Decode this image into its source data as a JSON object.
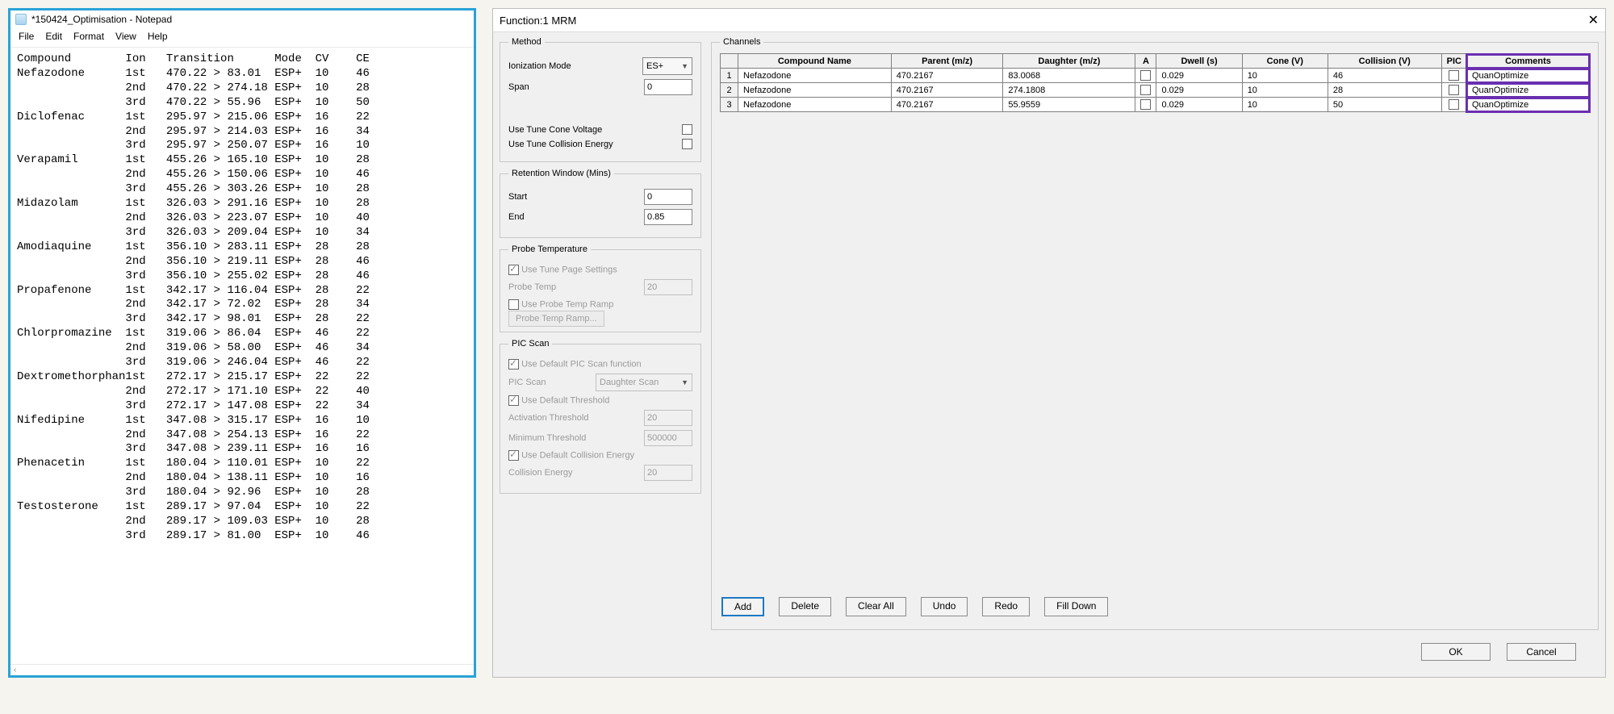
{
  "notepad": {
    "title": "*150424_Optimisation - Notepad",
    "menu": [
      "File",
      "Edit",
      "Format",
      "View",
      "Help"
    ],
    "header": [
      "Compound",
      "Ion",
      "Transition",
      "Mode",
      "CV",
      "CE"
    ],
    "compounds": [
      {
        "name": "Nefazodone",
        "rows": [
          {
            "ion": "1st",
            "trans": "470.22 > 83.01",
            "mode": "ESP+",
            "cv": "10",
            "ce": "46"
          },
          {
            "ion": "2nd",
            "trans": "470.22 > 274.18",
            "mode": "ESP+",
            "cv": "10",
            "ce": "28"
          },
          {
            "ion": "3rd",
            "trans": "470.22 > 55.96",
            "mode": "ESP+",
            "cv": "10",
            "ce": "50"
          }
        ]
      },
      {
        "name": "Diclofenac",
        "rows": [
          {
            "ion": "1st",
            "trans": "295.97 > 215.06",
            "mode": "ESP+",
            "cv": "16",
            "ce": "22"
          },
          {
            "ion": "2nd",
            "trans": "295.97 > 214.03",
            "mode": "ESP+",
            "cv": "16",
            "ce": "34"
          },
          {
            "ion": "3rd",
            "trans": "295.97 > 250.07",
            "mode": "ESP+",
            "cv": "16",
            "ce": "10"
          }
        ]
      },
      {
        "name": "Verapamil",
        "rows": [
          {
            "ion": "1st",
            "trans": "455.26 > 165.10",
            "mode": "ESP+",
            "cv": "10",
            "ce": "28"
          },
          {
            "ion": "2nd",
            "trans": "455.26 > 150.06",
            "mode": "ESP+",
            "cv": "10",
            "ce": "46"
          },
          {
            "ion": "3rd",
            "trans": "455.26 > 303.26",
            "mode": "ESP+",
            "cv": "10",
            "ce": "28"
          }
        ]
      },
      {
        "name": "Midazolam",
        "rows": [
          {
            "ion": "1st",
            "trans": "326.03 > 291.16",
            "mode": "ESP+",
            "cv": "10",
            "ce": "28"
          },
          {
            "ion": "2nd",
            "trans": "326.03 > 223.07",
            "mode": "ESP+",
            "cv": "10",
            "ce": "40"
          },
          {
            "ion": "3rd",
            "trans": "326.03 > 209.04",
            "mode": "ESP+",
            "cv": "10",
            "ce": "34"
          }
        ]
      },
      {
        "name": "Amodiaquine",
        "rows": [
          {
            "ion": "1st",
            "trans": "356.10 > 283.11",
            "mode": "ESP+",
            "cv": "28",
            "ce": "28"
          },
          {
            "ion": "2nd",
            "trans": "356.10 > 219.11",
            "mode": "ESP+",
            "cv": "28",
            "ce": "46"
          },
          {
            "ion": "3rd",
            "trans": "356.10 > 255.02",
            "mode": "ESP+",
            "cv": "28",
            "ce": "46"
          }
        ]
      },
      {
        "name": "Propafenone",
        "rows": [
          {
            "ion": "1st",
            "trans": "342.17 > 116.04",
            "mode": "ESP+",
            "cv": "28",
            "ce": "22"
          },
          {
            "ion": "2nd",
            "trans": "342.17 > 72.02",
            "mode": "ESP+",
            "cv": "28",
            "ce": "34"
          },
          {
            "ion": "3rd",
            "trans": "342.17 > 98.01",
            "mode": "ESP+",
            "cv": "28",
            "ce": "22"
          }
        ]
      },
      {
        "name": "Chlorpromazine",
        "rows": [
          {
            "ion": "1st",
            "trans": "319.06 > 86.04",
            "mode": "ESP+",
            "cv": "46",
            "ce": "22"
          },
          {
            "ion": "2nd",
            "trans": "319.06 > 58.00",
            "mode": "ESP+",
            "cv": "46",
            "ce": "34"
          },
          {
            "ion": "3rd",
            "trans": "319.06 > 246.04",
            "mode": "ESP+",
            "cv": "46",
            "ce": "22"
          }
        ]
      },
      {
        "name": "Dextromethorphan",
        "rows": [
          {
            "ion": "1st",
            "trans": "272.17 > 215.17",
            "mode": "ESP+",
            "cv": "22",
            "ce": "22"
          },
          {
            "ion": "2nd",
            "trans": "272.17 > 171.10",
            "mode": "ESP+",
            "cv": "22",
            "ce": "40"
          },
          {
            "ion": "3rd",
            "trans": "272.17 > 147.08",
            "mode": "ESP+",
            "cv": "22",
            "ce": "34"
          }
        ]
      },
      {
        "name": "Nifedipine",
        "rows": [
          {
            "ion": "1st",
            "trans": "347.08 > 315.17",
            "mode": "ESP+",
            "cv": "16",
            "ce": "10"
          },
          {
            "ion": "2nd",
            "trans": "347.08 > 254.13",
            "mode": "ESP+",
            "cv": "16",
            "ce": "22"
          },
          {
            "ion": "3rd",
            "trans": "347.08 > 239.11",
            "mode": "ESP+",
            "cv": "16",
            "ce": "16"
          }
        ]
      },
      {
        "name": "Phenacetin",
        "rows": [
          {
            "ion": "1st",
            "trans": "180.04 > 110.01",
            "mode": "ESP+",
            "cv": "10",
            "ce": "22"
          },
          {
            "ion": "2nd",
            "trans": "180.04 > 138.11",
            "mode": "ESP+",
            "cv": "10",
            "ce": "16"
          },
          {
            "ion": "3rd",
            "trans": "180.04 > 92.96",
            "mode": "ESP+",
            "cv": "10",
            "ce": "28"
          }
        ]
      },
      {
        "name": "Testosterone",
        "rows": [
          {
            "ion": "1st",
            "trans": "289.17 > 97.04",
            "mode": "ESP+",
            "cv": "10",
            "ce": "22"
          },
          {
            "ion": "2nd",
            "trans": "289.17 > 109.03",
            "mode": "ESP+",
            "cv": "10",
            "ce": "28"
          },
          {
            "ion": "3rd",
            "trans": "289.17 > 81.00",
            "mode": "ESP+",
            "cv": "10",
            "ce": "46"
          }
        ]
      }
    ],
    "col_widths": {
      "name": 16,
      "ion": 6,
      "trans": 16,
      "mode": 6,
      "cv": 6,
      "ce": 4
    }
  },
  "mrm": {
    "title": "Function:1 MRM",
    "method": {
      "legend": "Method",
      "ion_label": "Ionization Mode",
      "ion_value": "ES+",
      "span_label": "Span",
      "span_value": "0",
      "tune_cone": "Use Tune Cone Voltage",
      "tune_coll": "Use Tune Collision Energy"
    },
    "retention": {
      "legend": "Retention Window (Mins)",
      "start_label": "Start",
      "start_value": "0",
      "end_label": "End",
      "end_value": "0.85"
    },
    "probe": {
      "legend": "Probe Temperature",
      "use_tune": "Use Tune Page Settings",
      "temp_label": "Probe Temp",
      "temp_value": "20",
      "ramp_chk": "Use Probe Temp Ramp",
      "ramp_btn": "Probe Temp Ramp..."
    },
    "pic": {
      "legend": "PIC Scan",
      "use_default": "Use Default PIC Scan function",
      "scan_label": "PIC Scan",
      "scan_value": "Daughter Scan",
      "use_thresh": "Use Default Threshold",
      "act_label": "Activation Threshold",
      "act_value": "20",
      "min_label": "Minimum Threshold",
      "min_value": "500000",
      "use_ce": "Use Default Collision Energy",
      "ce_label": "Collision Energy",
      "ce_value": "20"
    },
    "channels": {
      "legend": "Channels",
      "columns": [
        "",
        "Compound Name",
        "Parent (m/z)",
        "Daughter (m/z)",
        "A",
        "Dwell (s)",
        "Cone (V)",
        "Collision (V)",
        "PIC",
        "Comments"
      ],
      "rows": [
        {
          "n": "1",
          "name": "Nefazodone",
          "parent": "470.2167",
          "daughter": "83.0068",
          "dwell": "0.029",
          "cone": "10",
          "coll": "46",
          "comment": "QuanOptimize"
        },
        {
          "n": "2",
          "name": "Nefazodone",
          "parent": "470.2167",
          "daughter": "274.1808",
          "dwell": "0.029",
          "cone": "10",
          "coll": "28",
          "comment": "QuanOptimize"
        },
        {
          "n": "3",
          "name": "Nefazodone",
          "parent": "470.2167",
          "daughter": "55.9559",
          "dwell": "0.029",
          "cone": "10",
          "coll": "50",
          "comment": "QuanOptimize"
        }
      ],
      "buttons": {
        "add": "Add",
        "delete": "Delete",
        "clear": "Clear All",
        "undo": "Undo",
        "redo": "Redo",
        "fill": "Fill Down"
      }
    },
    "dlg": {
      "ok": "OK",
      "cancel": "Cancel"
    },
    "highlight_color": "#6a2fb0",
    "notepad_border": "#29a3d6"
  }
}
